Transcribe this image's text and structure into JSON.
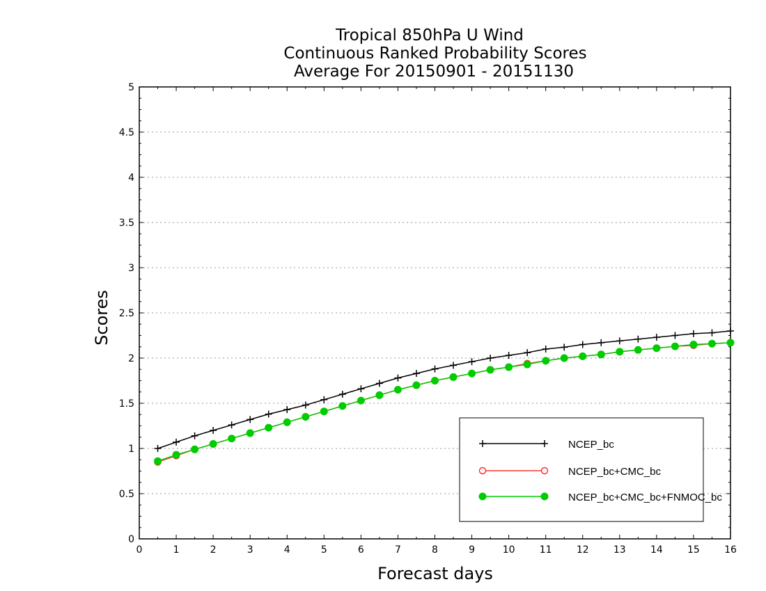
{
  "chart_data": {
    "type": "line",
    "title_lines": [
      "Tropical 850hPa U Wind",
      "Continuous Ranked Probability Scores",
      "Average For 20150901 - 20151130"
    ],
    "xlabel": "Forecast days",
    "ylabel": "Scores",
    "xlim": [
      0,
      16
    ],
    "ylim": [
      0,
      5
    ],
    "xticks": [
      "0",
      "1",
      "2",
      "3",
      "4",
      "5",
      "6",
      "7",
      "8",
      "9",
      "10",
      "11",
      "12",
      "13",
      "14",
      "15",
      "16"
    ],
    "yticks": [
      "0",
      "0.5",
      "1",
      "1.5",
      "2",
      "2.5",
      "3",
      "3.5",
      "4",
      "4.5",
      "5"
    ],
    "grid": "horizontal dotted",
    "legend_placement": "bottom-right",
    "x": [
      0.5,
      1,
      1.5,
      2,
      2.5,
      3,
      3.5,
      4,
      4.5,
      5,
      5.5,
      6,
      6.5,
      7,
      7.5,
      8,
      8.5,
      9,
      9.5,
      10,
      10.5,
      11,
      11.5,
      12,
      12.5,
      13,
      13.5,
      14,
      14.5,
      15,
      15.5,
      16
    ],
    "series": [
      {
        "name": "NCEP_bc",
        "color": "#000000",
        "marker": "plus",
        "values": [
          1.0,
          1.07,
          1.14,
          1.2,
          1.26,
          1.32,
          1.38,
          1.43,
          1.48,
          1.54,
          1.6,
          1.66,
          1.72,
          1.78,
          1.83,
          1.88,
          1.92,
          1.96,
          2.0,
          2.03,
          2.06,
          2.1,
          2.12,
          2.15,
          2.17,
          2.19,
          2.21,
          2.23,
          2.25,
          2.27,
          2.28,
          2.3
        ]
      },
      {
        "name": "NCEP_bc+CMC_bc",
        "color": "#ff3333",
        "marker": "open-circle",
        "values": [
          0.85,
          0.92,
          0.99,
          1.05,
          1.11,
          1.17,
          1.23,
          1.29,
          1.35,
          1.41,
          1.47,
          1.53,
          1.59,
          1.65,
          1.7,
          1.75,
          1.79,
          1.83,
          1.87,
          1.9,
          1.94,
          1.97,
          2.0,
          2.02,
          2.04,
          2.07,
          2.09,
          2.11,
          2.13,
          2.14,
          2.16,
          2.17
        ]
      },
      {
        "name": "NCEP_bc+CMC_bc+FNMOC_bc",
        "color": "#00cc00",
        "marker": "filled-circle",
        "values": [
          0.86,
          0.93,
          0.99,
          1.05,
          1.11,
          1.17,
          1.23,
          1.29,
          1.35,
          1.41,
          1.47,
          1.53,
          1.59,
          1.65,
          1.7,
          1.75,
          1.79,
          1.83,
          1.87,
          1.9,
          1.93,
          1.97,
          2.0,
          2.02,
          2.04,
          2.07,
          2.09,
          2.11,
          2.13,
          2.15,
          2.16,
          2.17
        ]
      }
    ]
  }
}
